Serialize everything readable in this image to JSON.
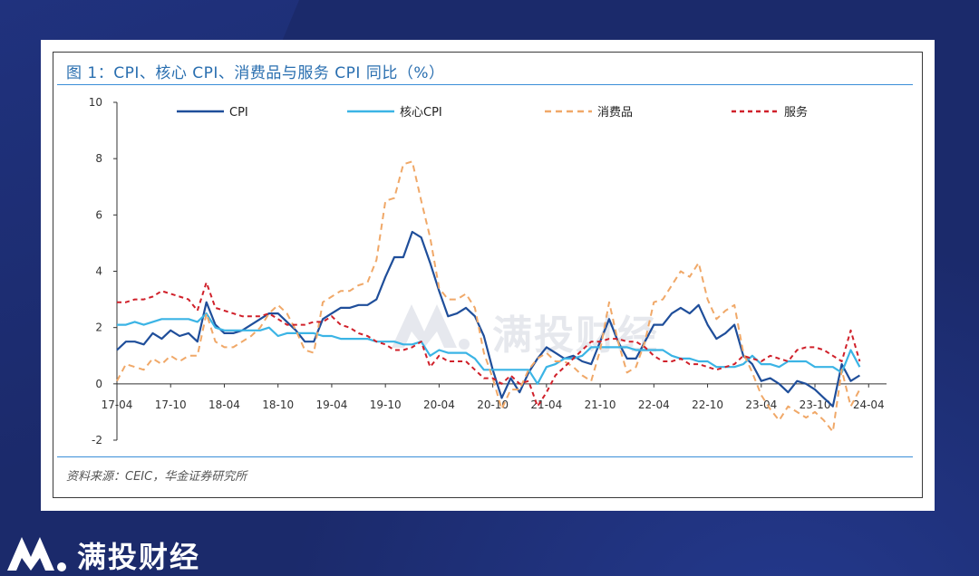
{
  "title": "图 1：CPI、核心 CPI、消费品与服务 CPI 同比（%）",
  "source": "资料来源：CEIC，华金证券研究所",
  "watermark": "满投财经",
  "brand": "满投财经",
  "colors": {
    "cpi": "#1f4e9a",
    "core_cpi": "#3bb4e5",
    "goods": "#f0a868",
    "services": "#d0202a"
  },
  "chart_data": {
    "type": "line",
    "ylim": [
      -2,
      10
    ],
    "yticks": [
      "10",
      "8",
      "6",
      "4",
      "2",
      "0",
      "-2"
    ],
    "ytick_values": [
      10,
      8,
      6,
      4,
      2,
      0,
      -2
    ],
    "xlim": [
      0,
      86
    ],
    "xtick_labels": [
      "17-04",
      "17-10",
      "18-04",
      "18-10",
      "19-04",
      "19-10",
      "20-04",
      "20-10",
      "21-04",
      "21-10",
      "22-04",
      "22-10",
      "23-04",
      "23-10",
      "24-04"
    ],
    "xtick_index": [
      0,
      6,
      12,
      18,
      24,
      30,
      36,
      42,
      48,
      54,
      60,
      66,
      72,
      78,
      84
    ],
    "legend_placement": "top",
    "series": [
      {
        "name": "CPI",
        "key": "cpi",
        "dash": "",
        "values": [
          1.2,
          1.5,
          1.5,
          1.4,
          1.8,
          1.6,
          1.9,
          1.7,
          1.8,
          1.5,
          2.9,
          2.1,
          1.8,
          1.8,
          1.9,
          2.1,
          2.3,
          2.5,
          2.5,
          2.2,
          1.9,
          1.5,
          1.5,
          2.3,
          2.5,
          2.7,
          2.7,
          2.8,
          2.8,
          3.0,
          3.8,
          4.5,
          4.5,
          5.4,
          5.2,
          4.3,
          3.3,
          2.4,
          2.5,
          2.7,
          2.4,
          1.7,
          0.5,
          -0.5,
          0.2,
          -0.3,
          0.4,
          0.9,
          1.3,
          1.1,
          0.9,
          1.0,
          0.8,
          0.7,
          1.5,
          2.3,
          1.5,
          0.9,
          0.9,
          1.5,
          2.1,
          2.1,
          2.5,
          2.7,
          2.5,
          2.8,
          2.1,
          1.6,
          1.8,
          2.1,
          1.0,
          0.7,
          0.1,
          0.2,
          0.0,
          -0.3,
          0.1,
          0.0,
          -0.2,
          -0.5,
          -0.8,
          0.7,
          0.1,
          0.3
        ]
      },
      {
        "name": "核心CPI",
        "key": "core_cpi",
        "dash": "",
        "values": [
          2.1,
          2.1,
          2.2,
          2.1,
          2.2,
          2.3,
          2.3,
          2.3,
          2.3,
          2.2,
          2.5,
          2.0,
          1.9,
          1.9,
          1.9,
          1.9,
          1.9,
          2.0,
          1.7,
          1.8,
          1.8,
          1.8,
          1.8,
          1.7,
          1.7,
          1.6,
          1.6,
          1.6,
          1.6,
          1.5,
          1.5,
          1.5,
          1.4,
          1.4,
          1.5,
          1.0,
          1.2,
          1.1,
          1.1,
          1.1,
          0.9,
          0.5,
          0.5,
          0.5,
          0.5,
          0.5,
          0.5,
          0.0,
          0.6,
          0.7,
          0.9,
          0.9,
          1.0,
          1.3,
          1.3,
          1.3,
          1.3,
          1.3,
          1.2,
          1.2,
          1.2,
          1.2,
          1.0,
          0.9,
          0.9,
          0.8,
          0.8,
          0.6,
          0.6,
          0.6,
          0.7,
          1.0,
          0.7,
          0.7,
          0.6,
          0.8,
          0.8,
          0.8,
          0.6,
          0.6,
          0.6,
          0.4,
          1.2,
          0.6
        ]
      },
      {
        "name": "消费品",
        "key": "goods",
        "dash": "7,5",
        "values": [
          0.1,
          0.7,
          0.6,
          0.5,
          0.9,
          0.7,
          1.0,
          0.8,
          1.0,
          1.0,
          2.5,
          1.5,
          1.3,
          1.3,
          1.5,
          1.7,
          2.0,
          2.5,
          2.8,
          2.5,
          1.9,
          1.2,
          1.1,
          2.9,
          3.1,
          3.3,
          3.3,
          3.5,
          3.6,
          4.4,
          6.5,
          6.6,
          7.8,
          7.9,
          6.5,
          5.2,
          3.4,
          3.0,
          3.0,
          3.2,
          2.7,
          1.1,
          0.2,
          -0.9,
          -0.2,
          -0.2,
          0.5,
          0.9,
          1.1,
          0.8,
          0.8,
          0.6,
          0.3,
          0.1,
          1.2,
          2.9,
          1.5,
          0.4,
          0.6,
          1.5,
          2.9,
          3.0,
          3.5,
          4.0,
          3.8,
          4.3,
          3.0,
          2.3,
          2.6,
          2.8,
          1.1,
          0.4,
          -0.4,
          -0.9,
          -1.3,
          -0.8,
          -1.0,
          -1.2,
          -1.0,
          -1.3,
          -1.7,
          0.5,
          -0.8,
          -0.2
        ]
      },
      {
        "name": "服务",
        "key": "services",
        "dash": "5,4",
        "values": [
          2.9,
          2.9,
          3.0,
          3.0,
          3.1,
          3.3,
          3.2,
          3.1,
          3.0,
          2.6,
          3.6,
          2.7,
          2.6,
          2.5,
          2.4,
          2.4,
          2.4,
          2.5,
          2.3,
          2.1,
          2.1,
          2.1,
          2.2,
          2.2,
          2.4,
          2.1,
          2.0,
          1.8,
          1.7,
          1.5,
          1.4,
          1.2,
          1.2,
          1.3,
          1.5,
          0.6,
          1.0,
          0.8,
          0.8,
          0.8,
          0.5,
          0.2,
          0.2,
          0.0,
          0.3,
          0.0,
          0.1,
          -0.8,
          -0.3,
          0.3,
          0.6,
          0.9,
          1.2,
          1.5,
          1.5,
          1.6,
          1.6,
          1.5,
          1.5,
          1.3,
          1.0,
          0.8,
          0.8,
          0.9,
          0.7,
          0.7,
          0.6,
          0.5,
          0.6,
          0.7,
          1.0,
          0.9,
          0.8,
          1.0,
          0.9,
          0.8,
          1.2,
          1.3,
          1.3,
          1.2,
          1.0,
          0.8,
          1.9,
          0.8
        ]
      }
    ]
  }
}
